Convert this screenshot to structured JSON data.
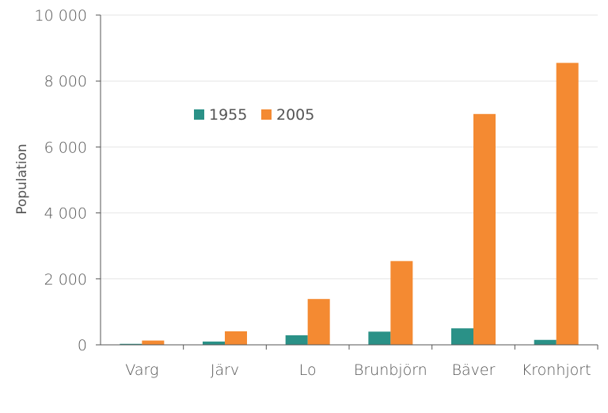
{
  "chart_data": {
    "type": "bar",
    "categories": [
      "Varg",
      "Järv",
      "Lo",
      "Brunbjörn",
      "Bäver",
      "Kronhjort"
    ],
    "series": [
      {
        "name": "1955",
        "values": [
          30,
          100,
          290,
          400,
          500,
          150
        ],
        "color": "#2a9187"
      },
      {
        "name": "2005",
        "values": [
          130,
          410,
          1390,
          2540,
          7000,
          8550
        ],
        "color": "#f48a32"
      }
    ],
    "ylabel": "Population",
    "xlabel": "",
    "ylim": [
      0,
      10000
    ],
    "yticks": [
      0,
      2000,
      4000,
      6000,
      8000,
      10000
    ],
    "ytick_labels": [
      "0",
      "2 000",
      "4 000",
      "6 000",
      "8 000",
      "10 000"
    ],
    "grid": true,
    "legend_position": "upper-center"
  }
}
